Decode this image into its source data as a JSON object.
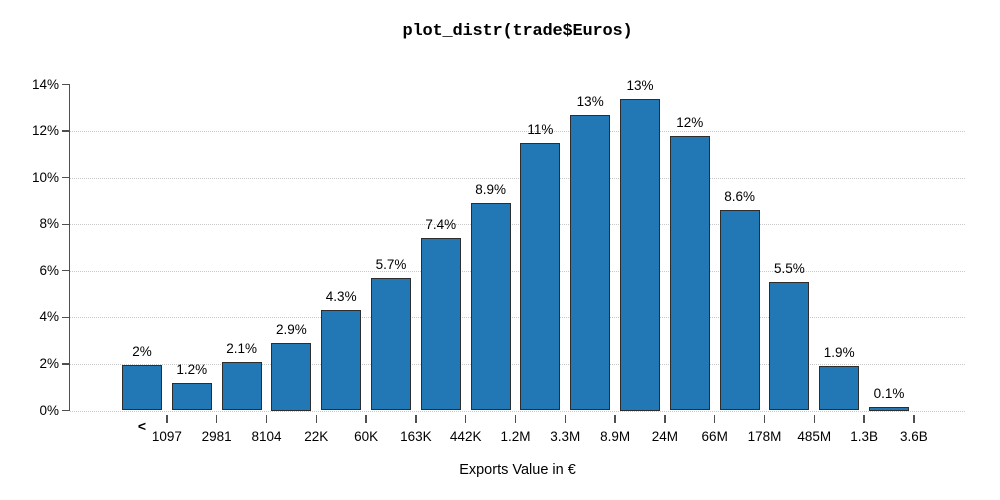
{
  "chart_data": {
    "type": "bar",
    "title": "plot_distr(trade$Euros)",
    "xlabel": "Exports Value in €",
    "ylabel": "",
    "ylim": [
      0,
      14
    ],
    "y_tick_labels": [
      "0%",
      "2%",
      "4%",
      "6%",
      "8%",
      "10%",
      "12%",
      "14%"
    ],
    "y_tick_values": [
      0,
      2,
      4,
      6,
      8,
      10,
      12,
      14
    ],
    "gridlines": {
      "style": "dotted",
      "at_percent": [
        0,
        2,
        4,
        6,
        8,
        10,
        12
      ]
    },
    "legend": "none",
    "first_bin_label": "<",
    "bin_edge_labels": [
      "1097",
      "2981",
      "8104",
      "22K",
      "60K",
      "163K",
      "442K",
      "1.2M",
      "3.3M",
      "8.9M",
      "24M",
      "66M",
      "178M",
      "485M",
      "1.3B",
      "3.6B"
    ],
    "values": [
      1.95,
      1.2,
      2.1,
      2.9,
      4.3,
      5.7,
      7.4,
      8.9,
      11.5,
      12.7,
      13.4,
      11.8,
      8.6,
      5.5,
      1.9,
      0.1
    ],
    "bar_labels": [
      "2%",
      "1.2%",
      "2.1%",
      "2.9%",
      "4.3%",
      "5.7%",
      "7.4%",
      "8.9%",
      "11%",
      "13%",
      "13%",
      "12%",
      "8.6%",
      "5.5%",
      "1.9%",
      "0.1%"
    ],
    "colors": {
      "bar_fill": "#2278b5",
      "bar_border": "#2d2d2d",
      "grid": "#c8c8c8",
      "axis": "#4f4f4f",
      "text": "#000000"
    }
  }
}
